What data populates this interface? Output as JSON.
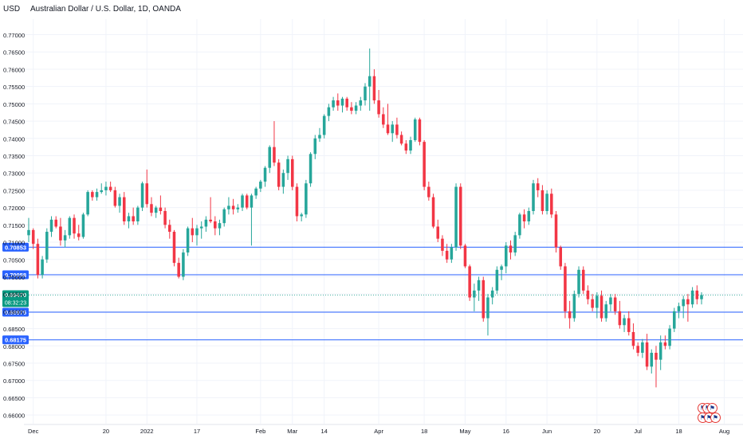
{
  "header": {
    "currency": "USD",
    "title": "Australian Dollar / U.S. Dollar, 1D, OANDA"
  },
  "colors": {
    "up": "#26a69a",
    "down": "#f23645",
    "hline": "#2962ff",
    "last_price_bg": "#089981",
    "grid": "#f0f3fa",
    "text": "#131722"
  },
  "events": {
    "icons": [
      "flag-icon",
      "flag-icon",
      "flag-icon",
      "flag-icon",
      "flag-icon",
      "flag-icon"
    ]
  },
  "chart_data": {
    "type": "candlestick",
    "title": "Australian Dollar / U.S. Dollar, 1D, OANDA",
    "ylim": [
      0.6575,
      0.7745
    ],
    "y_ticks": [
      "0.77000",
      "0.76500",
      "0.76000",
      "0.75500",
      "0.75000",
      "0.74500",
      "0.74000",
      "0.73500",
      "0.73000",
      "0.72500",
      "0.72000",
      "0.71500",
      "0.71000",
      "0.70500",
      "0.70000",
      "0.69500",
      "0.69000",
      "0.68500",
      "0.68000",
      "0.67500",
      "0.67000",
      "0.66500",
      "0.66000"
    ],
    "x_ticks": [
      "Dec",
      "20",
      "2022",
      "17",
      "Feb",
      "Mar",
      "14",
      "Apr",
      "18",
      "May",
      "16",
      "Jun",
      "20",
      "Jul",
      "18",
      "Aug"
    ],
    "horizontal_lines": [
      {
        "value": 0.70853,
        "label": "0.70853"
      },
      {
        "value": 0.70058,
        "label": "0.70058"
      },
      {
        "value": 0.68975,
        "label": "0.68975"
      },
      {
        "value": 0.68175,
        "label": "0.68175"
      }
    ],
    "last_price": {
      "value": 0.6947,
      "label": "0.69470",
      "countdown": "08:32:23"
    },
    "grid": true,
    "candles": [
      [
        0.712,
        0.717,
        0.71,
        0.7135
      ],
      [
        0.7135,
        0.714,
        0.708,
        0.7095
      ],
      [
        0.7095,
        0.711,
        0.6995,
        0.7005
      ],
      [
        0.7005,
        0.706,
        0.6995,
        0.705
      ],
      [
        0.705,
        0.714,
        0.704,
        0.713
      ],
      [
        0.713,
        0.7175,
        0.7115,
        0.7165
      ],
      [
        0.7165,
        0.7175,
        0.714,
        0.7145
      ],
      [
        0.7145,
        0.717,
        0.709,
        0.7105
      ],
      [
        0.7105,
        0.7135,
        0.7085,
        0.712
      ],
      [
        0.712,
        0.7175,
        0.711,
        0.717
      ],
      [
        0.717,
        0.718,
        0.711,
        0.7125
      ],
      [
        0.7125,
        0.715,
        0.7105,
        0.7115
      ],
      [
        0.7115,
        0.7185,
        0.711,
        0.718
      ],
      [
        0.718,
        0.725,
        0.7175,
        0.7245
      ],
      [
        0.7245,
        0.725,
        0.722,
        0.723
      ],
      [
        0.723,
        0.7255,
        0.722,
        0.7245
      ],
      [
        0.7245,
        0.727,
        0.724,
        0.725
      ],
      [
        0.725,
        0.7275,
        0.7235,
        0.726
      ],
      [
        0.726,
        0.7275,
        0.7245,
        0.725
      ],
      [
        0.725,
        0.726,
        0.72,
        0.7205
      ],
      [
        0.7205,
        0.724,
        0.7185,
        0.723
      ],
      [
        0.723,
        0.7245,
        0.715,
        0.716
      ],
      [
        0.716,
        0.7185,
        0.714,
        0.7175
      ],
      [
        0.7175,
        0.72,
        0.715,
        0.716
      ],
      [
        0.716,
        0.7205,
        0.715,
        0.72
      ],
      [
        0.72,
        0.7275,
        0.719,
        0.727
      ],
      [
        0.727,
        0.731,
        0.72,
        0.721
      ],
      [
        0.721,
        0.723,
        0.7175,
        0.7185
      ],
      [
        0.7185,
        0.7205,
        0.717,
        0.72
      ],
      [
        0.72,
        0.7235,
        0.718,
        0.719
      ],
      [
        0.719,
        0.72,
        0.714,
        0.715
      ],
      [
        0.715,
        0.7165,
        0.711,
        0.713
      ],
      [
        0.713,
        0.7135,
        0.703,
        0.704
      ],
      [
        0.704,
        0.7055,
        0.6995,
        0.7
      ],
      [
        0.7,
        0.708,
        0.699,
        0.707
      ],
      [
        0.707,
        0.7145,
        0.706,
        0.714
      ],
      [
        0.714,
        0.717,
        0.71,
        0.712
      ],
      [
        0.712,
        0.715,
        0.709,
        0.714
      ],
      [
        0.714,
        0.716,
        0.711,
        0.7145
      ],
      [
        0.7145,
        0.7175,
        0.713,
        0.7165
      ],
      [
        0.7165,
        0.723,
        0.7155,
        0.716
      ],
      [
        0.716,
        0.7175,
        0.712,
        0.714
      ],
      [
        0.714,
        0.7165,
        0.712,
        0.7155
      ],
      [
        0.7155,
        0.72,
        0.7145,
        0.7195
      ],
      [
        0.7195,
        0.723,
        0.718,
        0.7205
      ],
      [
        0.7205,
        0.7225,
        0.718,
        0.7195
      ],
      [
        0.7195,
        0.721,
        0.7185,
        0.72
      ],
      [
        0.72,
        0.724,
        0.719,
        0.7235
      ],
      [
        0.7235,
        0.724,
        0.7195,
        0.72
      ],
      [
        0.72,
        0.724,
        0.709,
        0.7235
      ],
      [
        0.7235,
        0.726,
        0.7225,
        0.7255
      ],
      [
        0.7255,
        0.728,
        0.7245,
        0.7275
      ],
      [
        0.7275,
        0.732,
        0.726,
        0.7315
      ],
      [
        0.7315,
        0.738,
        0.73,
        0.7375
      ],
      [
        0.7375,
        0.745,
        0.732,
        0.733
      ],
      [
        0.733,
        0.734,
        0.725,
        0.726
      ],
      [
        0.726,
        0.731,
        0.724,
        0.73
      ],
      [
        0.73,
        0.735,
        0.728,
        0.734
      ],
      [
        0.734,
        0.735,
        0.725,
        0.726
      ],
      [
        0.726,
        0.727,
        0.716,
        0.7175
      ],
      [
        0.7175,
        0.7185,
        0.716,
        0.718
      ],
      [
        0.718,
        0.728,
        0.717,
        0.727
      ],
      [
        0.727,
        0.736,
        0.726,
        0.7355
      ],
      [
        0.7355,
        0.741,
        0.734,
        0.74
      ],
      [
        0.74,
        0.743,
        0.739,
        0.741
      ],
      [
        0.741,
        0.747,
        0.74,
        0.7465
      ],
      [
        0.7465,
        0.75,
        0.745,
        0.749
      ],
      [
        0.749,
        0.752,
        0.748,
        0.751
      ],
      [
        0.751,
        0.753,
        0.748,
        0.7495
      ],
      [
        0.7495,
        0.752,
        0.7475,
        0.7515
      ],
      [
        0.7515,
        0.752,
        0.748,
        0.749
      ],
      [
        0.749,
        0.7505,
        0.747,
        0.748
      ],
      [
        0.748,
        0.7505,
        0.747,
        0.7495
      ],
      [
        0.7495,
        0.752,
        0.748,
        0.751
      ],
      [
        0.751,
        0.756,
        0.7495,
        0.755
      ],
      [
        0.755,
        0.766,
        0.748,
        0.758
      ],
      [
        0.758,
        0.76,
        0.75,
        0.751
      ],
      [
        0.751,
        0.754,
        0.746,
        0.747
      ],
      [
        0.747,
        0.749,
        0.743,
        0.744
      ],
      [
        0.744,
        0.75,
        0.741,
        0.7415
      ],
      [
        0.7415,
        0.745,
        0.739,
        0.744
      ],
      [
        0.744,
        0.746,
        0.74,
        0.741
      ],
      [
        0.741,
        0.742,
        0.738,
        0.7385
      ],
      [
        0.7385,
        0.7395,
        0.7355,
        0.7365
      ],
      [
        0.7365,
        0.7405,
        0.7355,
        0.7395
      ],
      [
        0.7395,
        0.746,
        0.739,
        0.7455
      ],
      [
        0.7455,
        0.746,
        0.738,
        0.739
      ],
      [
        0.739,
        0.7395,
        0.725,
        0.726
      ],
      [
        0.726,
        0.7275,
        0.722,
        0.723
      ],
      [
        0.723,
        0.724,
        0.714,
        0.7145
      ],
      [
        0.7145,
        0.7165,
        0.71,
        0.711
      ],
      [
        0.711,
        0.712,
        0.706,
        0.7075
      ],
      [
        0.7075,
        0.7095,
        0.704,
        0.705
      ],
      [
        0.705,
        0.7095,
        0.704,
        0.7085
      ],
      [
        0.7085,
        0.727,
        0.7075,
        0.726
      ],
      [
        0.726,
        0.727,
        0.708,
        0.709
      ],
      [
        0.709,
        0.7095,
        0.7025,
        0.703
      ],
      [
        0.703,
        0.7035,
        0.693,
        0.694
      ],
      [
        0.694,
        0.698,
        0.69,
        0.696
      ],
      [
        0.696,
        0.7,
        0.693,
        0.699
      ],
      [
        0.699,
        0.7,
        0.687,
        0.688
      ],
      [
        0.688,
        0.695,
        0.683,
        0.694
      ],
      [
        0.694,
        0.697,
        0.692,
        0.696
      ],
      [
        0.696,
        0.703,
        0.695,
        0.702
      ],
      [
        0.702,
        0.7035,
        0.699,
        0.703
      ],
      [
        0.703,
        0.71,
        0.701,
        0.709
      ],
      [
        0.709,
        0.7105,
        0.705,
        0.707
      ],
      [
        0.707,
        0.713,
        0.706,
        0.712
      ],
      [
        0.712,
        0.7185,
        0.711,
        0.718
      ],
      [
        0.718,
        0.7195,
        0.714,
        0.716
      ],
      [
        0.716,
        0.72,
        0.715,
        0.719
      ],
      [
        0.719,
        0.728,
        0.718,
        0.727
      ],
      [
        0.727,
        0.7285,
        0.723,
        0.725
      ],
      [
        0.725,
        0.7265,
        0.718,
        0.719
      ],
      [
        0.719,
        0.725,
        0.718,
        0.724
      ],
      [
        0.724,
        0.7255,
        0.717,
        0.718
      ],
      [
        0.718,
        0.719,
        0.707,
        0.7085
      ],
      [
        0.7085,
        0.709,
        0.702,
        0.703
      ],
      [
        0.703,
        0.704,
        0.688,
        0.69
      ],
      [
        0.69,
        0.693,
        0.685,
        0.688
      ],
      [
        0.688,
        0.696,
        0.687,
        0.695
      ],
      [
        0.695,
        0.703,
        0.694,
        0.702
      ],
      [
        0.702,
        0.703,
        0.695,
        0.696
      ],
      [
        0.696,
        0.6975,
        0.692,
        0.6935
      ],
      [
        0.6935,
        0.695,
        0.69,
        0.691
      ],
      [
        0.691,
        0.6955,
        0.688,
        0.6945
      ],
      [
        0.6945,
        0.696,
        0.687,
        0.688
      ],
      [
        0.688,
        0.693,
        0.687,
        0.692
      ],
      [
        0.692,
        0.695,
        0.69,
        0.694
      ],
      [
        0.694,
        0.695,
        0.689,
        0.69
      ],
      [
        0.69,
        0.693,
        0.685,
        0.686
      ],
      [
        0.686,
        0.689,
        0.684,
        0.688
      ],
      [
        0.688,
        0.69,
        0.683,
        0.684
      ],
      [
        0.684,
        0.6865,
        0.679,
        0.68
      ],
      [
        0.68,
        0.681,
        0.677,
        0.678
      ],
      [
        0.678,
        0.682,
        0.6765,
        0.681
      ],
      [
        0.681,
        0.6835,
        0.673,
        0.674
      ],
      [
        0.674,
        0.679,
        0.672,
        0.678
      ],
      [
        0.678,
        0.68,
        0.668,
        0.676
      ],
      [
        0.676,
        0.683,
        0.673,
        0.681
      ],
      [
        0.681,
        0.683,
        0.679,
        0.68
      ],
      [
        0.68,
        0.686,
        0.679,
        0.685
      ],
      [
        0.685,
        0.691,
        0.684,
        0.69
      ],
      [
        0.69,
        0.6925,
        0.688,
        0.6915
      ],
      [
        0.6915,
        0.6945,
        0.688,
        0.6935
      ],
      [
        0.6935,
        0.695,
        0.687,
        0.692
      ],
      [
        0.692,
        0.697,
        0.691,
        0.696
      ],
      [
        0.696,
        0.6975,
        0.692,
        0.6935
      ],
      [
        0.6935,
        0.6955,
        0.692,
        0.6947
      ]
    ]
  }
}
